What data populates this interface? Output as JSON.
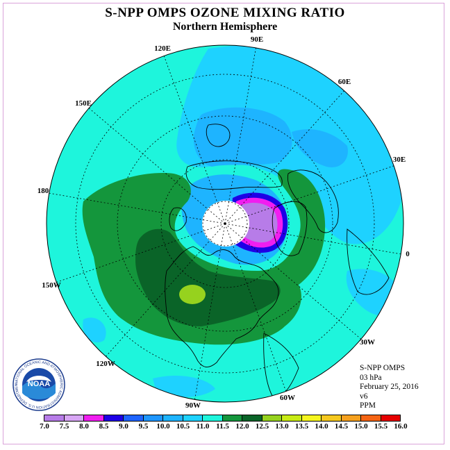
{
  "title": "S-NPP OMPS OZONE MIXING RATIO",
  "subtitle": "Northern Hemisphere",
  "longitude_labels": {
    "lon_90E": "90E",
    "lon_60E": "60E",
    "lon_30E": "30E",
    "lon_0": "0",
    "lon_30W": "30W",
    "lon_60W": "60W",
    "lon_90W": "90W",
    "lon_120W": "120W",
    "lon_150W": "150W",
    "lon_180": "180",
    "lon_150E": "150E",
    "lon_120E": "120E"
  },
  "info": {
    "instrument": "S-NPP OMPS",
    "pressure": "03 hPa",
    "date": "February 25, 2016",
    "version": "v6",
    "units": "PPM"
  },
  "colorbar": {
    "labels": [
      "7.0",
      "7.5",
      "8.0",
      "8.5",
      "9.0",
      "9.5",
      "10.0",
      "10.5",
      "11.0",
      "11.5",
      "12.0",
      "12.5",
      "13.0",
      "13.5",
      "14.0",
      "14.5",
      "15.0",
      "15.5",
      "16.0"
    ],
    "colors": [
      "#b77ce8",
      "#d8a6f5",
      "#f01ef0",
      "#1e00e6",
      "#1e64ff",
      "#1e96ff",
      "#1eb4ff",
      "#1ed2ff",
      "#1ef5dc",
      "#14963c",
      "#0a6428",
      "#96d21e",
      "#c8eb14",
      "#f5f51e",
      "#f5c81e",
      "#f5a01e",
      "#f56414",
      "#e60000",
      "#8c5a3c"
    ]
  },
  "logo": {
    "text": "NOAA",
    "ring_text": "NATIONAL OCEANIC AND ATMOSPHERIC ADMINISTRATION U.S. DEPARTMENT OF COMMERCE"
  },
  "map_colors": {
    "background_field": "#1ef5dc",
    "low_band": "#1ed2ff",
    "lower_band": "#1eb4ff",
    "mid_green": "#14963c",
    "dark_green": "#0a6428",
    "yellow_patch": "#96d21e",
    "polar_low_purple": "#b77ce8",
    "polar_magenta": "#f01ef0",
    "polar_blue": "#1e00e6",
    "no_data_cap": "#ffffff"
  }
}
